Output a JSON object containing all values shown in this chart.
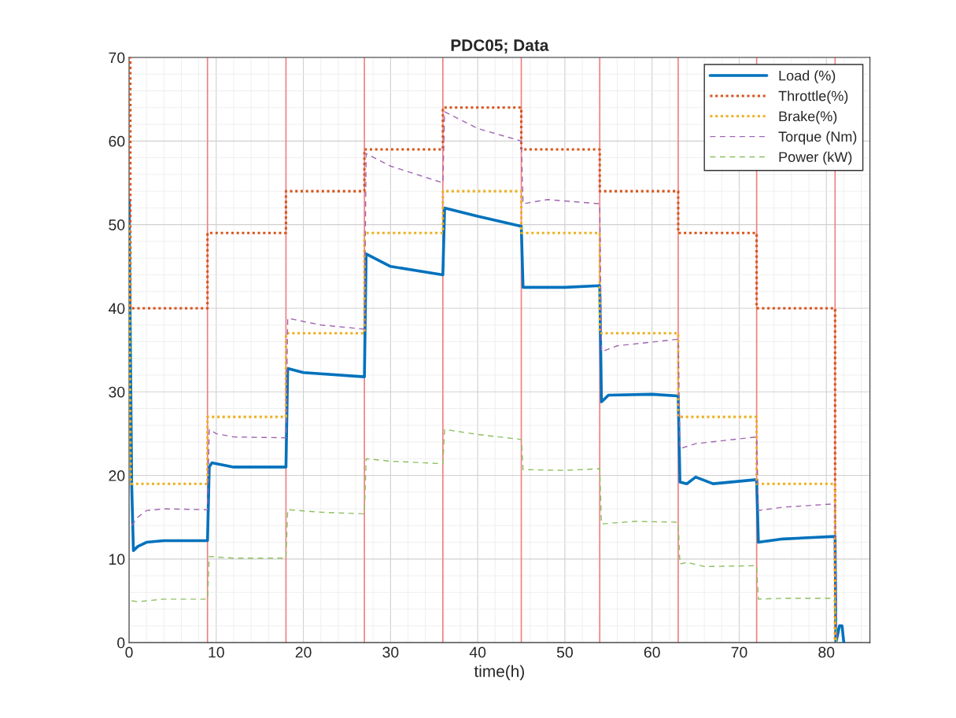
{
  "chart_data": {
    "type": "line",
    "title": "PDC05; Data",
    "xlabel": "time(h)",
    "xlim": [
      0,
      85
    ],
    "ylim": [
      0,
      70
    ],
    "xticks": [
      0,
      10,
      20,
      30,
      40,
      50,
      60,
      70,
      80
    ],
    "yticks": [
      0,
      10,
      20,
      30,
      40,
      50,
      60,
      70
    ],
    "grid": true,
    "legend": "top right",
    "marker": "none",
    "ref_lines": [
      {
        "axis": "x",
        "value": 9,
        "label": null,
        "color": "#f08080"
      },
      {
        "axis": "x",
        "value": 18,
        "label": null,
        "color": "#f08080"
      },
      {
        "axis": "x",
        "value": 27,
        "label": null,
        "color": "#f08080"
      },
      {
        "axis": "x",
        "value": 36,
        "label": null,
        "color": "#f08080"
      },
      {
        "axis": "x",
        "value": 45,
        "label": null,
        "color": "#f08080"
      },
      {
        "axis": "x",
        "value": 54,
        "label": null,
        "color": "#f08080"
      },
      {
        "axis": "x",
        "value": 63,
        "label": null,
        "color": "#f08080"
      },
      {
        "axis": "x",
        "value": 72,
        "label": null,
        "color": "#f08080"
      },
      {
        "axis": "x",
        "value": 81,
        "label": null,
        "color": "#f08080"
      }
    ],
    "series": [
      {
        "name": "Load (%)",
        "color": "#0072bd",
        "line_style": "solid",
        "x": [
          0,
          0.3,
          0.5,
          1,
          2,
          4,
          9,
          9.2,
          9.5,
          12,
          18,
          18.2,
          20,
          27,
          27.2,
          30,
          36,
          36.2,
          40,
          45,
          45.2,
          50,
          54,
          54.2,
          55,
          60,
          63,
          63.2,
          64,
          65,
          67,
          72,
          72.2,
          75,
          81,
          81.1,
          81.5,
          81.8,
          82
        ],
        "values": [
          53,
          19,
          11,
          11.5,
          12,
          12.2,
          12.2,
          21,
          21.5,
          21,
          21,
          32.8,
          32.3,
          31.8,
          46.5,
          45,
          44,
          52,
          51,
          49.8,
          42.5,
          42.5,
          42.7,
          28.8,
          29.6,
          29.7,
          29.5,
          19.2,
          19,
          19.8,
          19,
          19.5,
          12,
          12.4,
          12.7,
          0,
          2,
          2,
          0
        ]
      },
      {
        "name": "Throttle(%)",
        "color": "#d95319",
        "line_style": "dotted",
        "x": [
          0,
          0.15,
          0.15,
          9,
          9,
          18,
          18,
          27,
          27,
          36,
          36,
          45,
          45,
          54,
          54,
          63,
          63,
          72,
          72,
          81,
          81
        ],
        "values": [
          70,
          70,
          40,
          40,
          49,
          49,
          54,
          54,
          59,
          59,
          64,
          64,
          59,
          59,
          54,
          54,
          49,
          49,
          40,
          40,
          0
        ]
      },
      {
        "name": "Brake(%)",
        "color": "#edb120",
        "line_style": "dotted",
        "x": [
          0,
          0.2,
          9,
          9,
          18,
          18,
          27,
          27,
          36,
          36,
          45,
          45,
          54,
          54,
          63,
          63,
          72,
          72,
          81,
          81
        ],
        "values": [
          50,
          19,
          19,
          27,
          27,
          37,
          37,
          49,
          49,
          54,
          54,
          49,
          49,
          37,
          37,
          27,
          27,
          19,
          19,
          0
        ]
      },
      {
        "name": "Torque (Nm)",
        "color": "#a066b0",
        "line_style": "dashed",
        "x": [
          0.3,
          1,
          2,
          4,
          9,
          9.2,
          10,
          12,
          18,
          18.2,
          22,
          27,
          27.2,
          30,
          36,
          36.2,
          40,
          45,
          45.2,
          48,
          54,
          54.2,
          56,
          63,
          63.2,
          65,
          72,
          72.2,
          75,
          81,
          81.2
        ],
        "values": [
          14,
          15,
          15.8,
          16,
          15.9,
          25.5,
          25,
          24.6,
          24.5,
          38.8,
          38,
          37.5,
          58.5,
          57,
          55,
          63.5,
          61.5,
          60,
          52.5,
          53,
          52.5,
          34.8,
          35.5,
          36.3,
          23.2,
          23.8,
          24.6,
          15.8,
          16.2,
          16.6,
          0
        ]
      },
      {
        "name": "Power (kW)",
        "color": "#8cc060",
        "line_style": "dashed",
        "x": [
          0.3,
          1,
          4,
          9,
          9.2,
          12,
          18,
          18.2,
          22,
          27,
          27.2,
          30,
          36,
          36.2,
          40,
          45,
          45.2,
          50,
          54,
          54.2,
          58,
          63,
          63.2,
          64,
          66,
          72,
          72.2,
          75,
          81,
          81.2
        ],
        "values": [
          5,
          4.9,
          5.2,
          5.2,
          10.3,
          10.1,
          10.1,
          15.9,
          15.6,
          15.4,
          22,
          21.7,
          21.4,
          25.5,
          24.9,
          24.3,
          20.7,
          20.6,
          20.8,
          14.2,
          14.5,
          14.4,
          9.4,
          9.6,
          9.1,
          9.2,
          5.2,
          5.3,
          5.3,
          0
        ]
      }
    ]
  }
}
